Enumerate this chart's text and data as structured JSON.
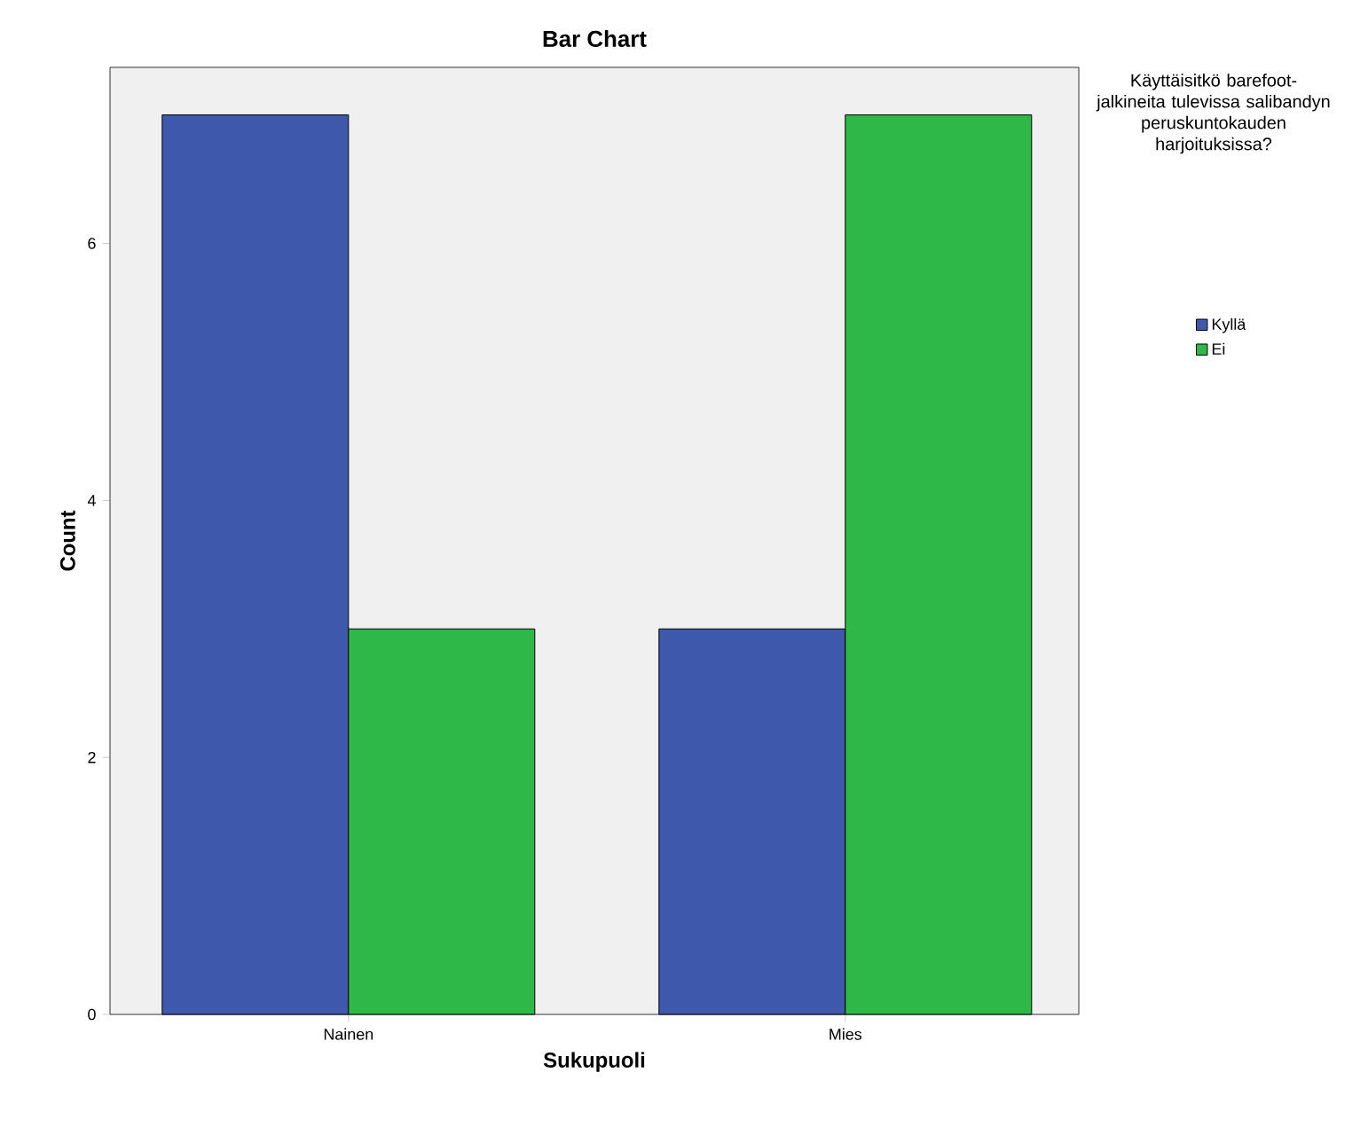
{
  "chart_data": {
    "type": "bar",
    "title": "Bar Chart",
    "xlabel": "Sukupuoli",
    "ylabel": "Count",
    "legend_title": "Käyttäisitkö barefoot-jalkineita tulevissa salibandyn peruskuntokauden harjoituksissa?",
    "categories": [
      "Nainen",
      "Mies"
    ],
    "series": [
      {
        "name": "Kyllä",
        "color": "#3e58ac",
        "values": [
          7,
          3
        ]
      },
      {
        "name": "Ei",
        "color": "#2eb848",
        "values": [
          3,
          7
        ]
      }
    ],
    "ylim": [
      0,
      7.37
    ],
    "yticks": [
      0,
      2,
      4,
      6
    ],
    "legend": "right"
  }
}
